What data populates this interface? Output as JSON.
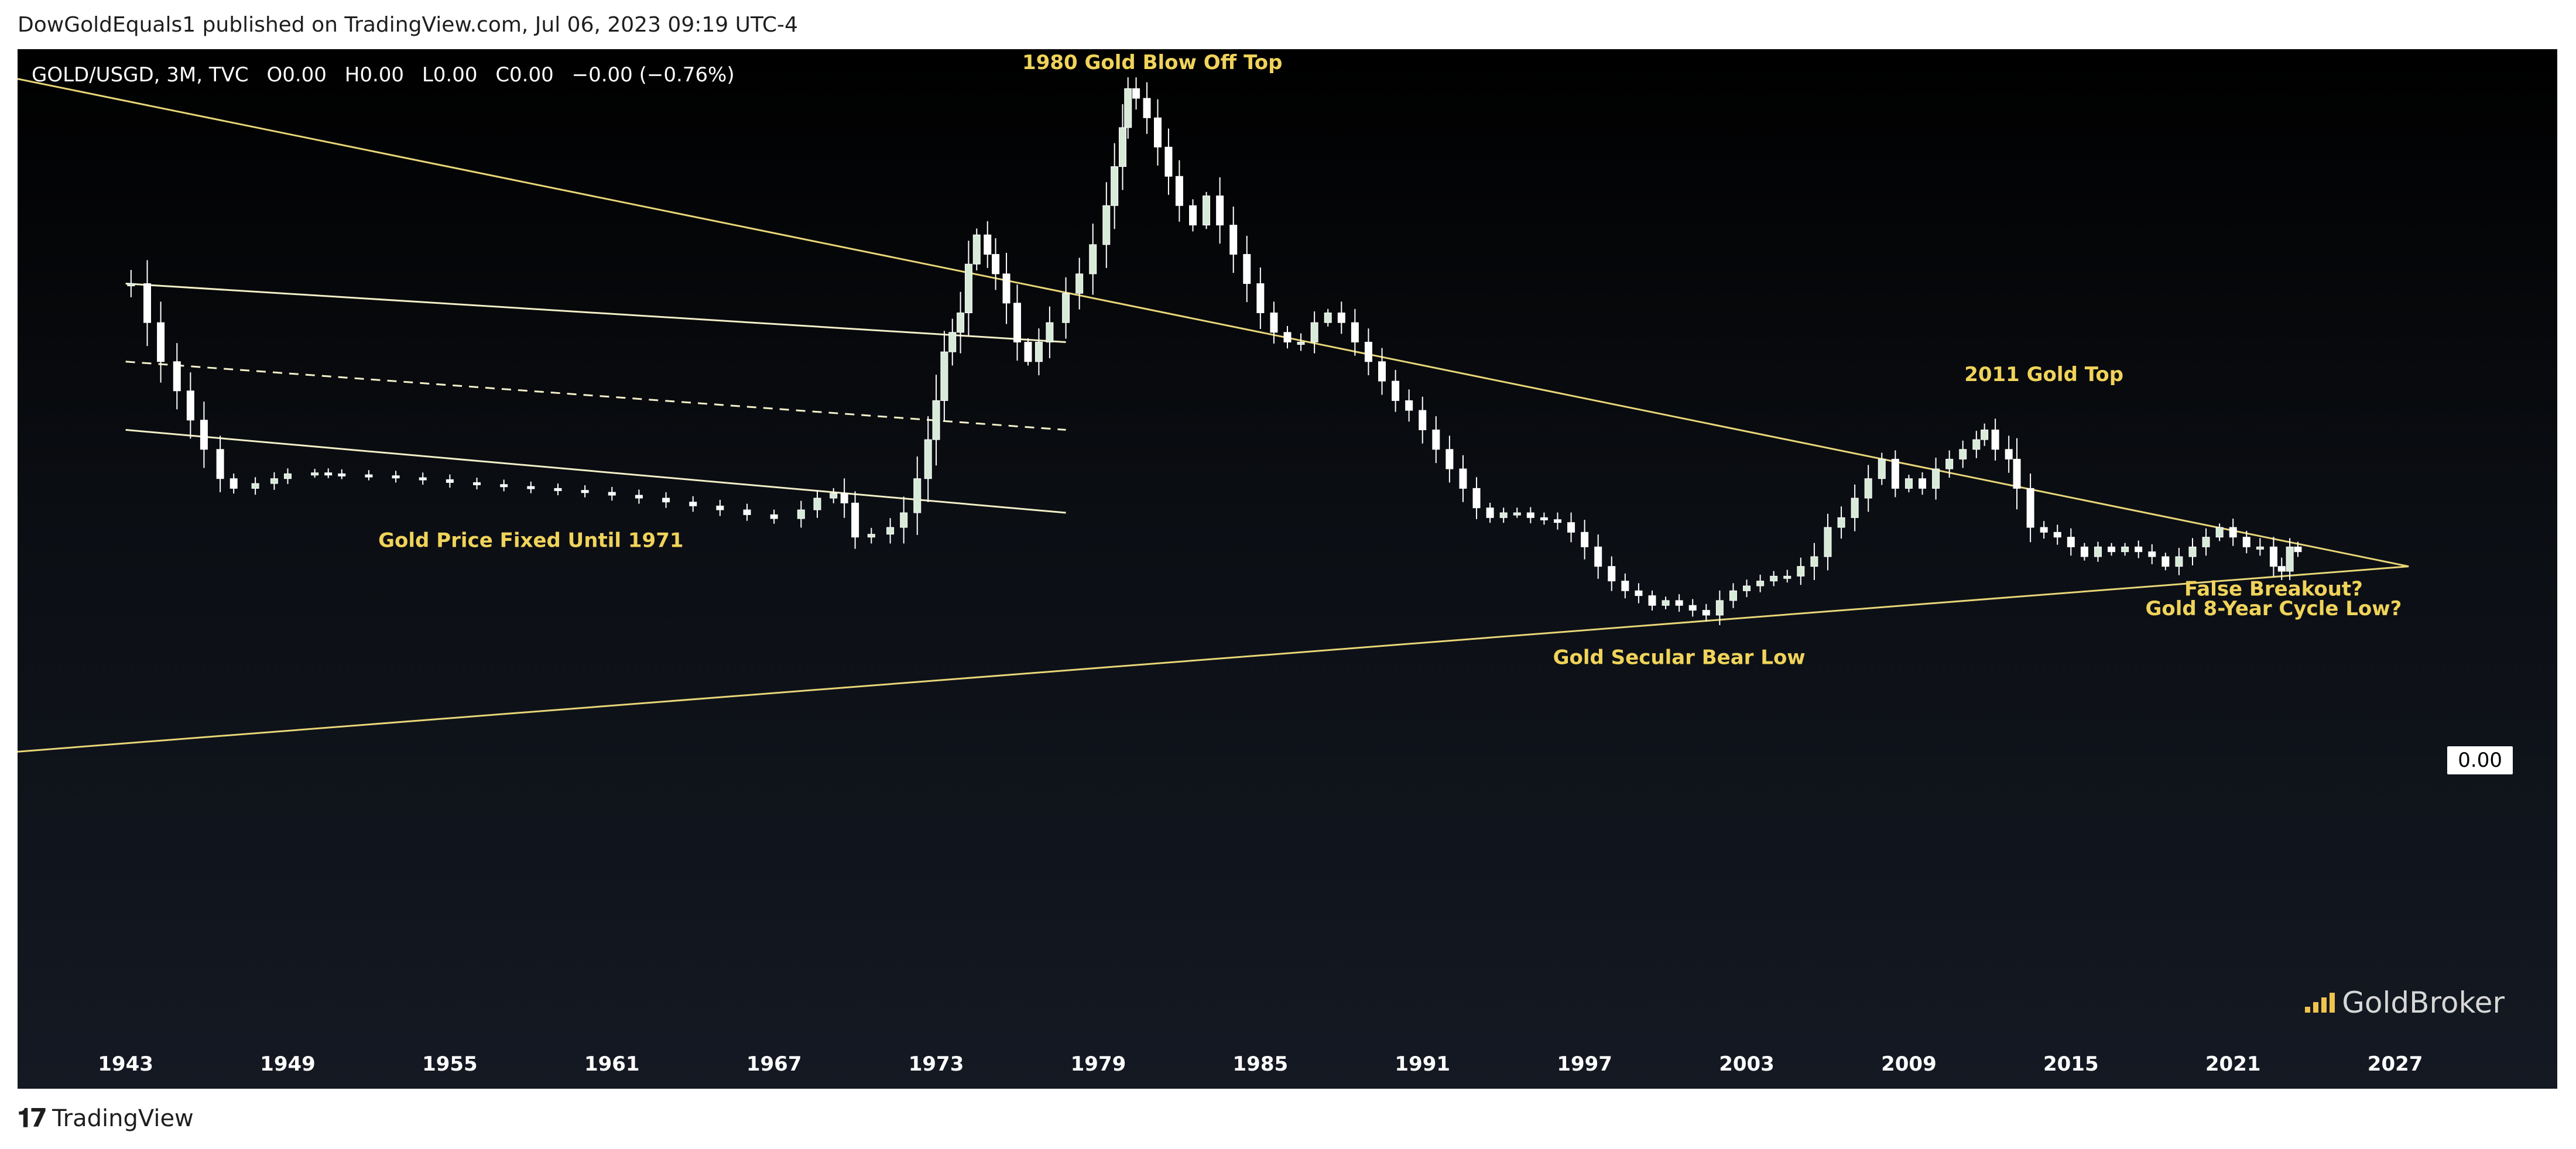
{
  "header": {
    "published_line": "DowGoldEquals1 published on TradingView.com, Jul 06, 2023 09:19 UTC-4"
  },
  "legend": {
    "symbol": "GOLD/USGD, 3M, TVC",
    "open": "O0.00",
    "high": "H0.00",
    "low": "L0.00",
    "close": "C0.00",
    "change": "−0.00 (−0.76%)"
  },
  "price_badge": "0.00",
  "watermark": "GoldBroker",
  "footer": {
    "brand": "TradingView"
  },
  "colors": {
    "background_top": "#000000",
    "background_bottom": "#141923",
    "candle": "#ffffff",
    "trendline": "#e8d678",
    "channel_line": "#f3efc8",
    "annotation_text": "#f0d35a",
    "axis_text": "#ffffff",
    "watermark_icon": "#f0c34d"
  },
  "icons": {
    "tradingview_logo": "tradingview-logo-icon",
    "goldbroker_logo": "goldbroker-bars-icon"
  },
  "chart_data": {
    "type": "candlestick",
    "title": "",
    "xlabel": "",
    "ylabel": "",
    "x_tick_labels": [
      "1943",
      "1949",
      "1955",
      "1961",
      "1967",
      "1973",
      "1979",
      "1985",
      "1991",
      "1997",
      "2003",
      "2009",
      "2015",
      "2021",
      "2027"
    ],
    "x_range": [
      1939,
      2033
    ],
    "y_axis": "hidden (relative scale, values masked)",
    "grid": false,
    "legend": "top-left",
    "series": [
      {
        "name": "GOLD/USGD",
        "points": [
          [
            1943.2,
            0.78
          ],
          [
            1943.8,
            0.74
          ],
          [
            1944.3,
            0.7
          ],
          [
            1944.9,
            0.67
          ],
          [
            1945.4,
            0.64
          ],
          [
            1945.9,
            0.61
          ],
          [
            1946.5,
            0.58
          ],
          [
            1947.0,
            0.57
          ],
          [
            1947.8,
            0.575
          ],
          [
            1948.5,
            0.58
          ],
          [
            1949.0,
            0.585
          ],
          [
            1950.0,
            0.586
          ],
          [
            1950.5,
            0.585
          ],
          [
            1951.0,
            0.584
          ],
          [
            1952.0,
            0.583
          ],
          [
            1953.0,
            0.581
          ],
          [
            1954.0,
            0.579
          ],
          [
            1955.0,
            0.576
          ],
          [
            1956.0,
            0.574
          ],
          [
            1957.0,
            0.572
          ],
          [
            1958.0,
            0.57
          ],
          [
            1959.0,
            0.568
          ],
          [
            1960.0,
            0.566
          ],
          [
            1961.0,
            0.563
          ],
          [
            1962.0,
            0.56
          ],
          [
            1963.0,
            0.556
          ],
          [
            1964.0,
            0.552
          ],
          [
            1965.0,
            0.548
          ],
          [
            1966.0,
            0.543
          ],
          [
            1967.0,
            0.539
          ],
          [
            1968.0,
            0.548
          ],
          [
            1968.6,
            0.56
          ],
          [
            1969.2,
            0.565
          ],
          [
            1969.6,
            0.555
          ],
          [
            1970.0,
            0.52
          ],
          [
            1970.6,
            0.523
          ],
          [
            1971.3,
            0.53
          ],
          [
            1971.8,
            0.545
          ],
          [
            1972.3,
            0.58
          ],
          [
            1972.7,
            0.62
          ],
          [
            1973.0,
            0.66
          ],
          [
            1973.3,
            0.71
          ],
          [
            1973.6,
            0.73
          ],
          [
            1973.9,
            0.75
          ],
          [
            1974.2,
            0.8
          ],
          [
            1974.5,
            0.83
          ],
          [
            1974.9,
            0.81
          ],
          [
            1975.2,
            0.79
          ],
          [
            1975.6,
            0.76
          ],
          [
            1976.0,
            0.72
          ],
          [
            1976.4,
            0.7
          ],
          [
            1976.8,
            0.72
          ],
          [
            1977.2,
            0.74
          ],
          [
            1977.8,
            0.77
          ],
          [
            1978.3,
            0.79
          ],
          [
            1978.8,
            0.82
          ],
          [
            1979.3,
            0.86
          ],
          [
            1979.6,
            0.9
          ],
          [
            1979.9,
            0.94
          ],
          [
            1980.1,
            0.98
          ],
          [
            1980.4,
            0.97
          ],
          [
            1980.8,
            0.95
          ],
          [
            1981.2,
            0.92
          ],
          [
            1981.6,
            0.89
          ],
          [
            1982.0,
            0.86
          ],
          [
            1982.5,
            0.84
          ],
          [
            1983.0,
            0.87
          ],
          [
            1983.5,
            0.84
          ],
          [
            1984.0,
            0.81
          ],
          [
            1984.5,
            0.78
          ],
          [
            1985.0,
            0.75
          ],
          [
            1985.5,
            0.73
          ],
          [
            1986.0,
            0.72
          ],
          [
            1986.5,
            0.72
          ],
          [
            1987.0,
            0.74
          ],
          [
            1987.5,
            0.75
          ],
          [
            1988.0,
            0.74
          ],
          [
            1988.5,
            0.72
          ],
          [
            1989.0,
            0.7
          ],
          [
            1989.5,
            0.68
          ],
          [
            1990.0,
            0.66
          ],
          [
            1990.5,
            0.65
          ],
          [
            1991.0,
            0.63
          ],
          [
            1991.5,
            0.61
          ],
          [
            1992.0,
            0.59
          ],
          [
            1992.5,
            0.57
          ],
          [
            1993.0,
            0.55
          ],
          [
            1993.5,
            0.54
          ],
          [
            1994.0,
            0.545
          ],
          [
            1994.5,
            0.545
          ],
          [
            1995.0,
            0.54
          ],
          [
            1995.5,
            0.538
          ],
          [
            1996.0,
            0.535
          ],
          [
            1996.5,
            0.525
          ],
          [
            1997.0,
            0.51
          ],
          [
            1997.5,
            0.49
          ],
          [
            1998.0,
            0.475
          ],
          [
            1998.5,
            0.465
          ],
          [
            1999.0,
            0.46
          ],
          [
            1999.5,
            0.45
          ],
          [
            2000.0,
            0.455
          ],
          [
            2000.5,
            0.45
          ],
          [
            2001.0,
            0.445
          ],
          [
            2001.5,
            0.44
          ],
          [
            2002.0,
            0.455
          ],
          [
            2002.5,
            0.465
          ],
          [
            2003.0,
            0.47
          ],
          [
            2003.5,
            0.475
          ],
          [
            2004.0,
            0.48
          ],
          [
            2004.5,
            0.48
          ],
          [
            2005.0,
            0.49
          ],
          [
            2005.5,
            0.5
          ],
          [
            2006.0,
            0.53
          ],
          [
            2006.5,
            0.54
          ],
          [
            2007.0,
            0.56
          ],
          [
            2007.5,
            0.58
          ],
          [
            2008.0,
            0.6
          ],
          [
            2008.5,
            0.57
          ],
          [
            2009.0,
            0.58
          ],
          [
            2009.5,
            0.57
          ],
          [
            2010.0,
            0.59
          ],
          [
            2010.5,
            0.6
          ],
          [
            2011.0,
            0.61
          ],
          [
            2011.5,
            0.62
          ],
          [
            2011.8,
            0.63
          ],
          [
            2012.2,
            0.61
          ],
          [
            2012.7,
            0.6
          ],
          [
            2013.0,
            0.57
          ],
          [
            2013.5,
            0.53
          ],
          [
            2014.0,
            0.525
          ],
          [
            2014.5,
            0.52
          ],
          [
            2015.0,
            0.51
          ],
          [
            2015.5,
            0.5
          ],
          [
            2016.0,
            0.51
          ],
          [
            2016.5,
            0.505
          ],
          [
            2017.0,
            0.51
          ],
          [
            2017.5,
            0.505
          ],
          [
            2018.0,
            0.5
          ],
          [
            2018.5,
            0.49
          ],
          [
            2019.0,
            0.5
          ],
          [
            2019.5,
            0.51
          ],
          [
            2020.0,
            0.52
          ],
          [
            2020.5,
            0.53
          ],
          [
            2021.0,
            0.52
          ],
          [
            2021.5,
            0.51
          ],
          [
            2022.0,
            0.51
          ],
          [
            2022.5,
            0.49
          ],
          [
            2022.8,
            0.485
          ],
          [
            2023.1,
            0.51
          ],
          [
            2023.4,
            0.505
          ]
        ]
      }
    ],
    "trendlines": [
      {
        "name": "",
        "style": "solid",
        "from": [
          1939,
          0.3
        ],
        "to": [
          2027.5,
          0.49
        ]
      },
      {
        "name": "",
        "style": "solid",
        "from": [
          1939,
          0.99
        ],
        "to": [
          2027.5,
          0.49
        ]
      },
      {
        "name": "",
        "style": "solid",
        "from": [
          1943,
          0.78
        ],
        "to": [
          1977.8,
          0.72
        ]
      },
      {
        "name": "",
        "style": "dashed",
        "from": [
          1943,
          0.7
        ],
        "to": [
          1977.8,
          0.63
        ]
      },
      {
        "name": "",
        "style": "solid",
        "from": [
          1943,
          0.63
        ],
        "to": [
          1977.8,
          0.545
        ]
      }
    ],
    "annotations": [
      {
        "text": "1980 Gold Blow Off Top",
        "x": 1981,
        "y": 1.0
      },
      {
        "text": "Gold Price Fixed Until 1971",
        "x": 1958,
        "y": 0.51
      },
      {
        "text": "2011 Gold Top",
        "x": 2014,
        "y": 0.68
      },
      {
        "text": "Gold Secular Bear Low",
        "x": 2000.5,
        "y": 0.39
      },
      {
        "text": "False Breakout?",
        "x": 2022.5,
        "y": 0.46
      },
      {
        "text": "Gold 8-Year Cycle Low?",
        "x": 2022.5,
        "y": 0.44
      }
    ]
  }
}
